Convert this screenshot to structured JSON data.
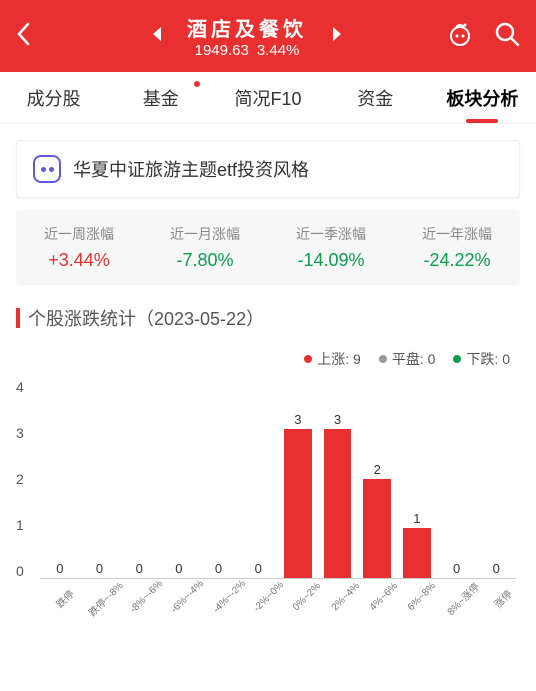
{
  "header": {
    "title": "酒店及餐饮",
    "index_value": "1949.63",
    "index_change": "3.44%"
  },
  "tabs": [
    {
      "label": "成分股",
      "active": false,
      "dot": false
    },
    {
      "label": "基金",
      "active": false,
      "dot": true
    },
    {
      "label": "简况F10",
      "active": false,
      "dot": false
    },
    {
      "label": "资金",
      "active": false,
      "dot": false
    },
    {
      "label": "板块分析",
      "active": true,
      "dot": false
    }
  ],
  "banner": {
    "text": "华夏中证旅游主题etf投资风格"
  },
  "period_stats": [
    {
      "label": "近一周涨幅",
      "value": "+3.44%",
      "direction": "up"
    },
    {
      "label": "近一月涨幅",
      "value": "-7.80%",
      "direction": "down"
    },
    {
      "label": "近一季涨幅",
      "value": "-14.09%",
      "direction": "down"
    },
    {
      "label": "近一年涨幅",
      "value": "-24.22%",
      "direction": "down"
    }
  ],
  "section": {
    "title": "个股涨跌统计（2023-05-22）"
  },
  "legend": [
    {
      "label": "上涨",
      "count": 9,
      "color": "#e83030"
    },
    {
      "label": "平盘",
      "count": 0,
      "color": "#999999"
    },
    {
      "label": "下跌",
      "count": 0,
      "color": "#0a9d4e"
    }
  ],
  "chart": {
    "type": "bar",
    "ylim": [
      0,
      4
    ],
    "ytick_step": 1,
    "bar_color": "#e83030",
    "categories": [
      "跌停",
      "跌停~-8%",
      "-8%~-6%",
      "-6%~-4%",
      "-4%~-2%",
      "-2%~0%",
      "0%~2%",
      "2%~4%",
      "4%~6%",
      "6%~8%",
      "8%~涨停",
      "涨停"
    ],
    "values": [
      0,
      0,
      0,
      0,
      0,
      0,
      3,
      3,
      2,
      1,
      0,
      0
    ]
  },
  "colors": {
    "primary": "#e83030",
    "up": "#e83030",
    "down": "#0a9d4e",
    "flat": "#999999",
    "background": "#ffffff",
    "panel_bg": "#f7f7f7"
  }
}
